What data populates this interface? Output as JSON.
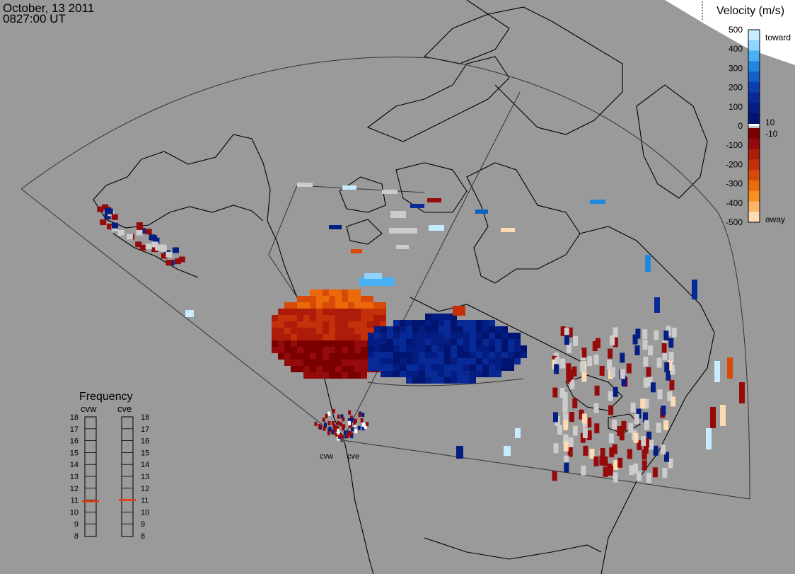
{
  "header": {
    "date": "October, 13 2011",
    "time": "0827:00 UT"
  },
  "colorbar": {
    "title": "Velocity (m/s)",
    "ticks": [
      "500",
      "400",
      "300",
      "200",
      "100",
      "0",
      "-100",
      "-200",
      "-300",
      "-400",
      "-500"
    ],
    "near_zero_labels": [
      "10",
      "-10"
    ],
    "end_labels": [
      "toward",
      "away"
    ],
    "colors_toward": [
      "#c8ecff",
      "#8fd3ff",
      "#48b0f5",
      "#1e88e0",
      "#1060c8",
      "#0b3fb0",
      "#082a96",
      "#041d82",
      "#001470"
    ],
    "colors_away": [
      "#7a0000",
      "#950a0a",
      "#ad1b0b",
      "#c4300a",
      "#d94a08",
      "#ea6a0a",
      "#f6901e",
      "#fab568",
      "#fddcb4"
    ],
    "zero_colors": [
      "#ffffff",
      "#c8c8c8"
    ]
  },
  "frequency": {
    "title": "Frequency",
    "left_label": "cvw",
    "right_label": "cve",
    "scale": [
      "18",
      "17",
      "16",
      "15",
      "14",
      "13",
      "12",
      "11",
      "10",
      "9",
      "8"
    ],
    "cvw_mhz": 10.9,
    "cve_mhz": 11.0,
    "marker_color": "#e0401a"
  },
  "radar_sites": [
    "cvw",
    "cve"
  ],
  "legend_colors": {
    "ground_scatter": "#cccccc",
    "outline": "#000000"
  }
}
